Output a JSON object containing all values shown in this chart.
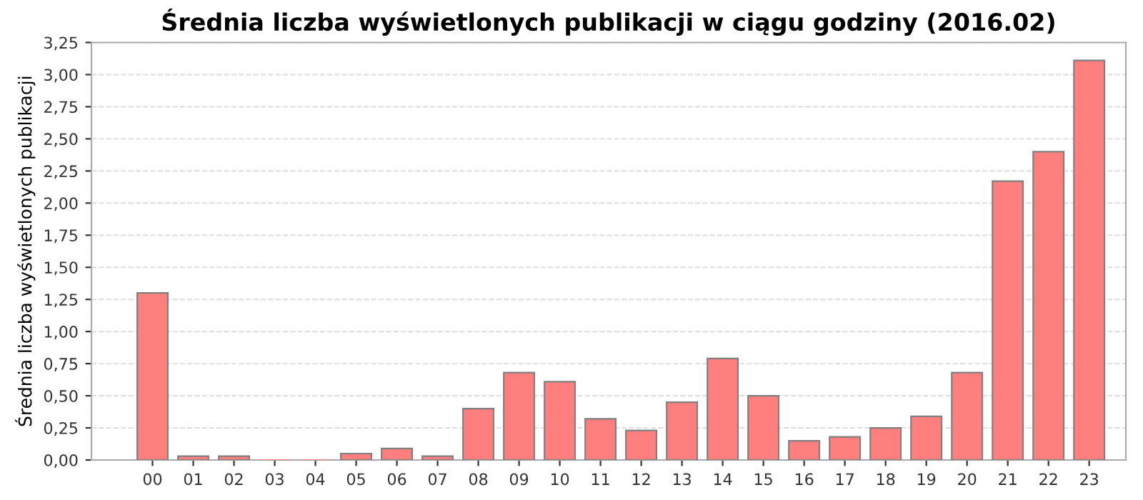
{
  "chart_data": {
    "type": "bar",
    "title": "Średnia liczba wyświetlonych publikacji w ciągu godziny (2016.02)",
    "ylabel": "Średnia liczba wyświetlonych publikacji",
    "categories": [
      "00",
      "01",
      "02",
      "03",
      "04",
      "05",
      "06",
      "07",
      "08",
      "09",
      "10",
      "11",
      "12",
      "13",
      "14",
      "15",
      "16",
      "17",
      "18",
      "19",
      "20",
      "21",
      "22",
      "23"
    ],
    "values": [
      1.3,
      0.03,
      0.03,
      0,
      0,
      0.05,
      0.09,
      0.03,
      0.4,
      0.68,
      0.61,
      0.32,
      0.23,
      0.45,
      0.79,
      0.5,
      0.15,
      0.18,
      0.25,
      0.34,
      0.68,
      2.17,
      2.4,
      3.11
    ],
    "color": "#ff7f7f",
    "ylim": [
      0,
      3.25
    ],
    "yticks": [
      {
        "value": 0,
        "label": "0,00"
      },
      {
        "value": 0.25,
        "label": "0,25"
      },
      {
        "value": 0.5,
        "label": "0,50"
      },
      {
        "value": 0.75,
        "label": "0,75"
      },
      {
        "value": 1,
        "label": "1,00"
      },
      {
        "value": 1.25,
        "label": "1,25"
      },
      {
        "value": 1.5,
        "label": "1,50"
      },
      {
        "value": 1.75,
        "label": "1,75"
      },
      {
        "value": 2,
        "label": "2,00"
      },
      {
        "value": 2.25,
        "label": "2,25"
      },
      {
        "value": 2.5,
        "label": "2,50"
      },
      {
        "value": 2.75,
        "label": "2,75"
      },
      {
        "value": 3,
        "label": "3,00"
      },
      {
        "value": 3.25,
        "label": "3,25"
      }
    ],
    "grid": "y"
  }
}
